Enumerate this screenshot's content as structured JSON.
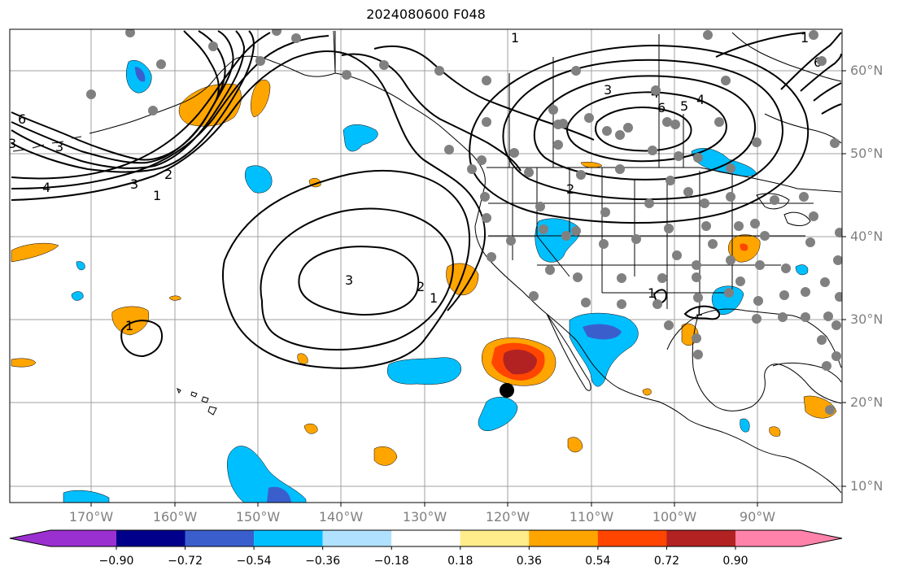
{
  "title": "2024080600 F048",
  "lat_labels": [
    "60°N",
    "50°N",
    "40°N",
    "30°N",
    "20°N",
    "10°N"
  ],
  "lon_labels": [
    "170°W",
    "160°W",
    "150°W",
    "140°W",
    "130°W",
    "120°W",
    "110°W",
    "100°W",
    "90°W"
  ],
  "colorbar": {
    "ticks": [
      "−0.90",
      "−0.72",
      "−0.54",
      "−0.36",
      "−0.18",
      "0.18",
      "0.36",
      "0.54",
      "0.72",
      "0.90"
    ],
    "colors": [
      "#9b30d0",
      "#00008b",
      "#3a5fcd",
      "#00bfff",
      "#b0e2ff",
      "#ffffff",
      "#ffec8b",
      "#ffa500",
      "#ff4500",
      "#b22222",
      "#ff82ab"
    ]
  },
  "contour_labels": [
    "1",
    "2",
    "3",
    "4",
    "5",
    "6"
  ],
  "marker": "storm-center-dot"
}
